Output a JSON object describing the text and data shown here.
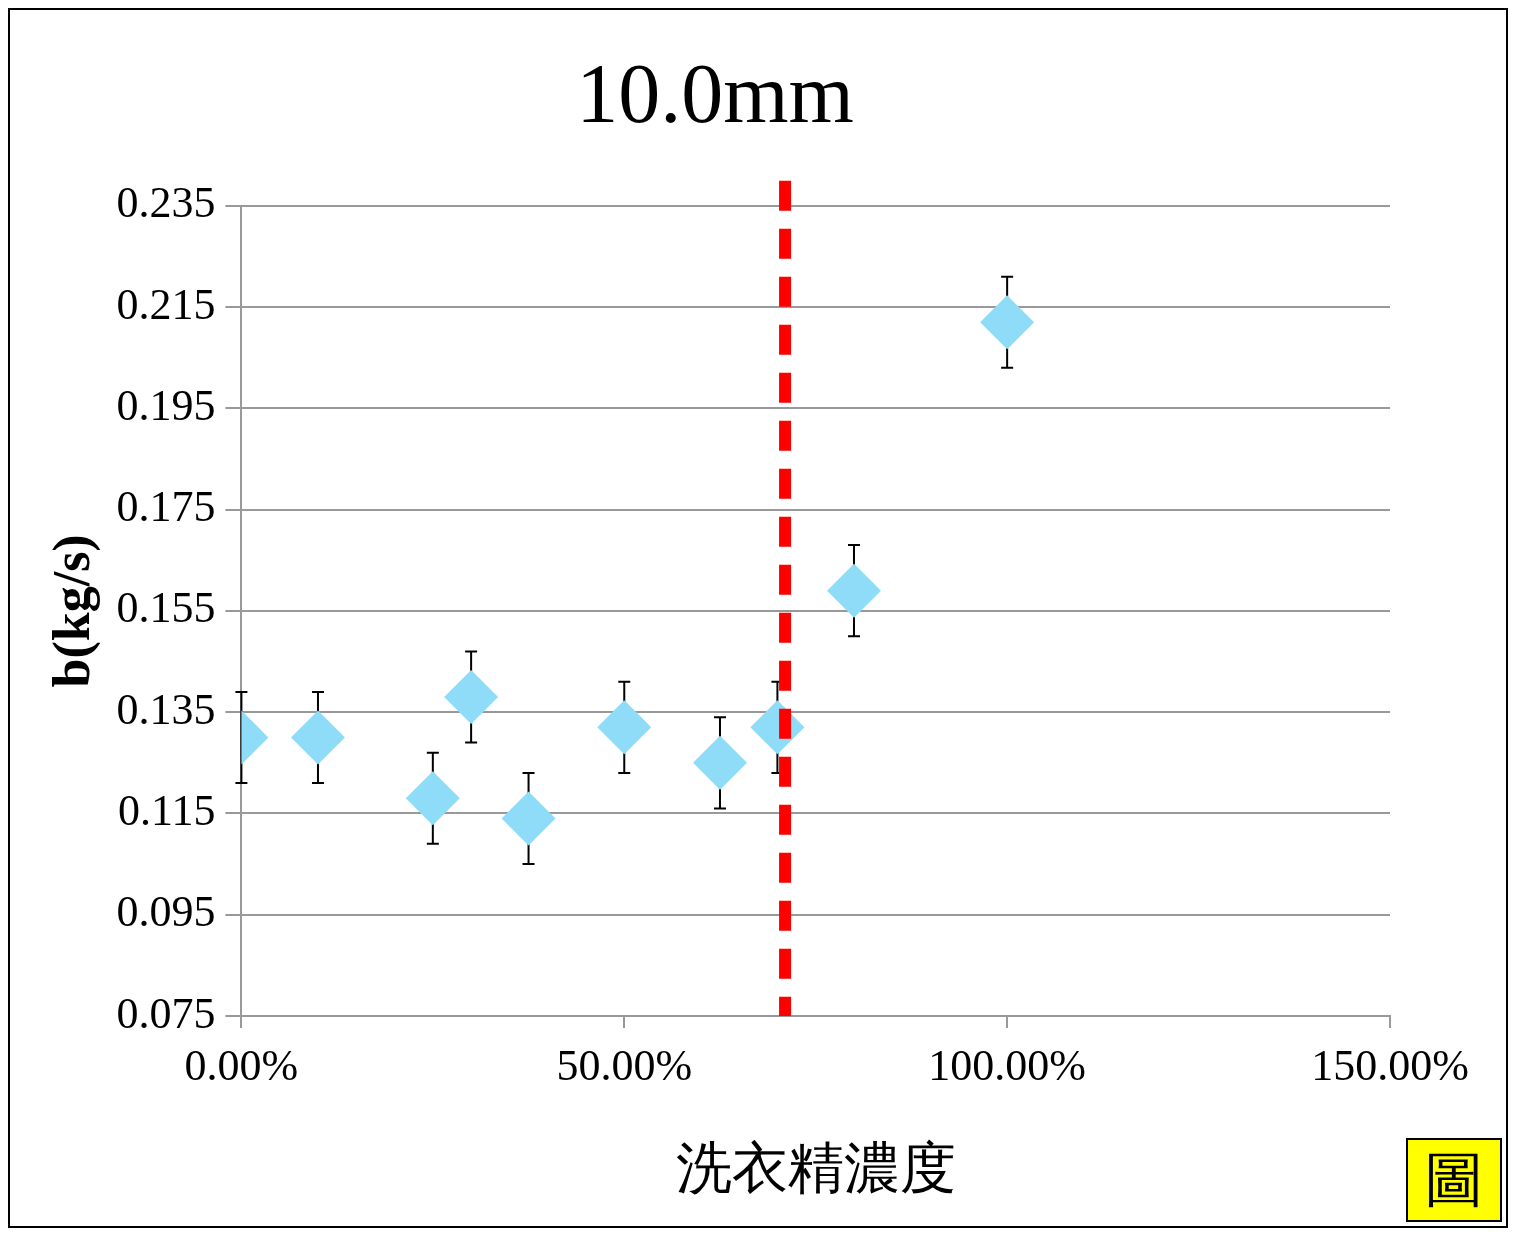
{
  "chart_data": {
    "type": "scatter",
    "title": "10.0mm",
    "xlabel": "洗衣精濃度",
    "ylabel": "b(kg/s)",
    "annotations": [
      "圖"
    ],
    "x": [
      0,
      10,
      25,
      30,
      37.5,
      50,
      62.5,
      70,
      80,
      100
    ],
    "series": [
      {
        "color": "#8fdcf8",
        "values": [
          0.13,
          0.13,
          0.118,
          0.138,
          0.114,
          0.132,
          0.125,
          0.132,
          0.159,
          0.212
        ],
        "errors": [
          0.009,
          0.009,
          0.009,
          0.009,
          0.009,
          0.009,
          0.009,
          0.009,
          0.009,
          0.009
        ]
      }
    ],
    "xlim": [
      0,
      150
    ],
    "xticks": [
      {
        "value": 0,
        "label": "0.00%"
      },
      {
        "value": 50,
        "label": "50.00%"
      },
      {
        "value": 100,
        "label": "100.00%"
      },
      {
        "value": 150,
        "label": "150.00%"
      }
    ],
    "ylim": [
      0.075,
      0.235
    ],
    "yticks": [
      0.075,
      0.095,
      0.115,
      0.135,
      0.155,
      0.175,
      0.195,
      0.215,
      0.235
    ],
    "ref_lines": [
      {
        "axis": "x",
        "value": 71,
        "color": "#ff0000",
        "line_style": "dashed"
      }
    ],
    "grid": "y",
    "legend": false,
    "marker": "diamond"
  }
}
